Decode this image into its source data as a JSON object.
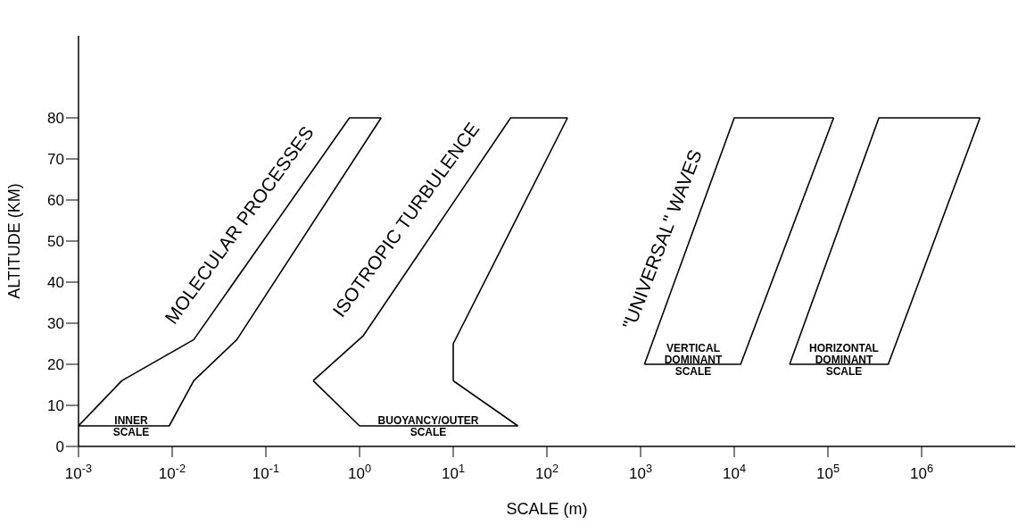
{
  "chart_data": {
    "type": "line",
    "xlabel": "SCALE (m)",
    "ylabel": "ALTITUDE (KM)",
    "log": "x",
    "marker": "none",
    "xlim": [
      0.001,
      10000000
    ],
    "ylim": [
      0,
      100
    ],
    "xticks": [
      {
        "value": 0.001,
        "label": "10$^{-3}$"
      },
      {
        "value": 0.01,
        "label": "10$^{-2}$"
      },
      {
        "value": 0.1,
        "label": "10$^{-1}$"
      },
      {
        "value": 1,
        "label": "10$^{0}$"
      },
      {
        "value": 10,
        "label": "10$^{1}$"
      },
      {
        "value": 100,
        "label": "10$^{2}$"
      },
      {
        "value": 1000,
        "label": "10$^{3}$"
      },
      {
        "value": 10000,
        "label": "10$^{4}$"
      },
      {
        "value": 100000,
        "label": "10$^{5}$"
      },
      {
        "value": 1000000,
        "label": "10$^{6}$"
      }
    ],
    "yticks": [
      0,
      10,
      20,
      30,
      40,
      50,
      60,
      70,
      80
    ],
    "series": [
      {
        "color": "#000000",
        "x": [
          0.001,
          0.0029,
          0.017,
          0.78,
          1.7
        ],
        "values": [
          5,
          16,
          26,
          80,
          80
        ]
      },
      {
        "color": "#000000",
        "x": [
          0.001,
          0.0093,
          0.017,
          0.049,
          1.7
        ],
        "values": [
          5,
          5,
          16,
          26,
          80
        ]
      },
      {
        "color": "#000000",
        "x": [
          0.32,
          1.1,
          41,
          166
        ],
        "values": [
          16,
          27,
          80,
          80
        ]
      },
      {
        "color": "#000000",
        "x": [
          0.32,
          1,
          49
        ],
        "values": [
          16,
          5,
          5
        ]
      },
      {
        "color": "#000000",
        "x": [
          10,
          49
        ],
        "values": [
          16,
          5
        ]
      },
      {
        "color": "#000000",
        "x": [
          10,
          10,
          166
        ],
        "values": [
          16,
          25,
          80
        ]
      },
      {
        "color": "#000000",
        "x": [
          1100,
          10000,
          115000
        ],
        "values": [
          20,
          80,
          80
        ]
      },
      {
        "color": "#000000",
        "x": [
          1100,
          11700,
          115000
        ],
        "values": [
          20,
          20,
          80
        ]
      },
      {
        "color": "#000000",
        "x": [
          39000,
          350000,
          4200000
        ],
        "values": [
          20,
          80,
          80
        ]
      },
      {
        "color": "#000000",
        "x": [
          39000,
          440000,
          4200000
        ],
        "values": [
          20,
          20,
          80
        ]
      }
    ],
    "annotations": [
      "MOLECULAR PROCESSES",
      "ISOTROPIC TURBULENCE",
      "\"UNIVERSAL\" WAVES",
      "INNER SCALE",
      "BUOYANCY/OUTER SCALE",
      "VERTICAL DOMINANT SCALE",
      "HORIZONTAL DOMINANT SCALE"
    ]
  }
}
